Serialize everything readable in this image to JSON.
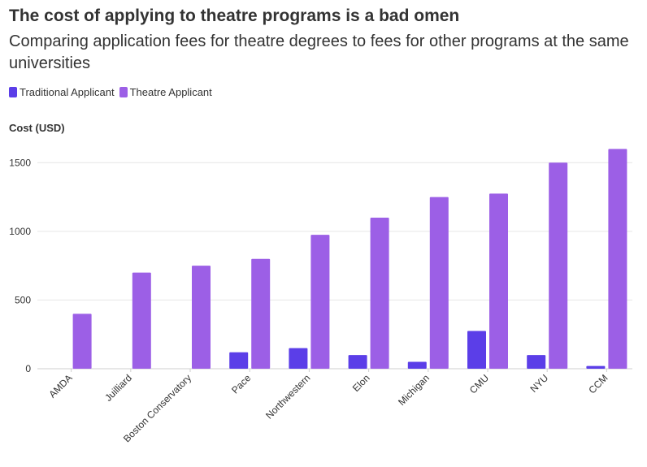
{
  "chart_data": {
    "type": "bar",
    "title": "The cost of applying to theatre programs is a bad omen",
    "subtitle": "Comparing application fees for theatre degrees to fees for other programs at the same universities",
    "ylabel": "Cost (USD)",
    "xlabel": "",
    "ylim": [
      0,
      1620
    ],
    "yticks": [
      0,
      500,
      1000,
      1500
    ],
    "legend_position": "top-left",
    "grid": true,
    "categories": [
      "AMDA",
      "Juilliard",
      "Boston Conservatory",
      "Pace",
      "Northwestern",
      "Elon",
      "Michigan",
      "CMU",
      "NYU",
      "CCM"
    ],
    "series": [
      {
        "name": "Traditional Applicant",
        "color": "#5b3ee8",
        "values": [
          0,
          0,
          0,
          120,
          150,
          100,
          50,
          275,
          100,
          20
        ]
      },
      {
        "name": "Theatre Applicant",
        "color": "#9c5fe6",
        "values": [
          400,
          700,
          750,
          800,
          975,
          1100,
          1250,
          1275,
          1500,
          1600
        ]
      }
    ]
  }
}
